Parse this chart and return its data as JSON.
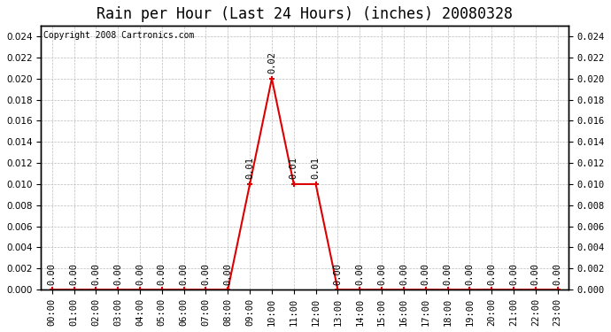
{
  "title": "Rain per Hour (Last 24 Hours) (inches) 20080328",
  "copyright": "Copyright 2008 Cartronics.com",
  "hours": [
    "00:00",
    "01:00",
    "02:00",
    "03:00",
    "04:00",
    "05:00",
    "06:00",
    "07:00",
    "08:00",
    "09:00",
    "10:00",
    "11:00",
    "12:00",
    "13:00",
    "14:00",
    "15:00",
    "16:00",
    "17:00",
    "18:00",
    "19:00",
    "20:00",
    "21:00",
    "22:00",
    "23:00"
  ],
  "values": [
    0.0,
    0.0,
    0.0,
    0.0,
    0.0,
    0.0,
    0.0,
    0.0,
    0.0,
    0.01,
    0.02,
    0.01,
    0.01,
    0.0,
    0.0,
    0.0,
    0.0,
    0.0,
    0.0,
    0.0,
    0.0,
    0.0,
    0.0,
    0.0
  ],
  "line_color": "#dd0000",
  "marker_color": "#dd0000",
  "background_color": "#ffffff",
  "plot_bg_color": "#ffffff",
  "grid_color": "#bbbbbb",
  "ylim": [
    0.0,
    0.025
  ],
  "yticks": [
    0.0,
    0.002,
    0.004,
    0.006,
    0.008,
    0.01,
    0.012,
    0.014,
    0.016,
    0.018,
    0.02,
    0.022,
    0.024
  ],
  "title_fontsize": 12,
  "copyright_fontsize": 7,
  "tick_fontsize": 7.5,
  "annotation_fontsize": 7.5,
  "annotation_rotation": 90
}
